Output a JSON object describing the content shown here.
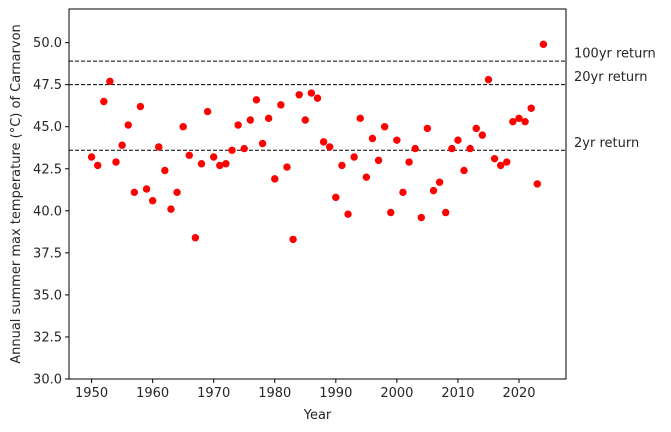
{
  "chart_data": {
    "type": "scatter",
    "xlabel": "Year",
    "ylabel": "Annual summer max temperature (°C) of Carnarvon",
    "xlim": [
      1946.3,
      2027.7
    ],
    "ylim": [
      30.0,
      52.0
    ],
    "x_ticks": [
      1950,
      1960,
      1970,
      1980,
      1990,
      2000,
      2010,
      2020
    ],
    "x_tick_labels": [
      "1950",
      "1960",
      "1970",
      "1980",
      "1990",
      "2000",
      "2010",
      "2020"
    ],
    "y_ticks": [
      30.0,
      32.5,
      35.0,
      37.5,
      40.0,
      42.5,
      45.0,
      47.5,
      50.0
    ],
    "y_tick_labels": [
      "30.0",
      "32.5",
      "35.0",
      "37.5",
      "40.0",
      "42.5",
      "45.0",
      "47.5",
      "50.0"
    ],
    "grid": false,
    "marker_color": "#ff0000",
    "line_color": "#000000",
    "series": [
      {
        "x": [
          1950,
          1951,
          1952,
          1953,
          1954,
          1955,
          1956,
          1957,
          1958,
          1959,
          1960,
          1961,
          1962,
          1963,
          1964,
          1965,
          1966,
          1967,
          1968,
          1969,
          1970,
          1971,
          1972,
          1973,
          1974,
          1975,
          1976,
          1977,
          1978,
          1979,
          1980,
          1981,
          1982,
          1983,
          1984,
          1985,
          1986,
          1987,
          1988,
          1989,
          1990,
          1991,
          1992,
          1993,
          1994,
          1995,
          1996,
          1997,
          1998,
          1999,
          2000,
          2001,
          2002,
          2003,
          2004,
          2005,
          2006,
          2007,
          2008,
          2009,
          2010,
          2011,
          2012,
          2013,
          2014,
          2015,
          2016,
          2017,
          2018,
          2019,
          2020,
          2021,
          2022,
          2023,
          2024
        ],
        "y": [
          43.2,
          42.7,
          46.5,
          47.7,
          42.9,
          43.9,
          45.1,
          41.1,
          46.2,
          41.3,
          40.6,
          43.8,
          42.4,
          40.1,
          41.1,
          45.0,
          43.3,
          38.4,
          42.8,
          45.9,
          43.2,
          42.7,
          42.8,
          43.6,
          45.1,
          43.7,
          45.4,
          46.6,
          44.0,
          45.5,
          41.9,
          46.3,
          42.6,
          38.3,
          46.9,
          45.4,
          47.0,
          46.7,
          44.1,
          43.8,
          40.8,
          42.7,
          39.8,
          43.2,
          45.5,
          42.0,
          44.3,
          43.0,
          45.0,
          39.9,
          44.2,
          41.1,
          42.9,
          43.7,
          39.6,
          44.9,
          41.2,
          41.7,
          39.9,
          43.7,
          44.2,
          42.4,
          43.7,
          44.9,
          44.5,
          47.8,
          43.1,
          42.7,
          42.9,
          45.3,
          45.5,
          45.3,
          46.1,
          41.6,
          49.9
        ]
      }
    ],
    "reference_lines": [
      {
        "label": "100yr return",
        "y": 48.9
      },
      {
        "label": "20yr return",
        "y": 47.5
      },
      {
        "label": "2yr return",
        "y": 43.6
      }
    ]
  }
}
